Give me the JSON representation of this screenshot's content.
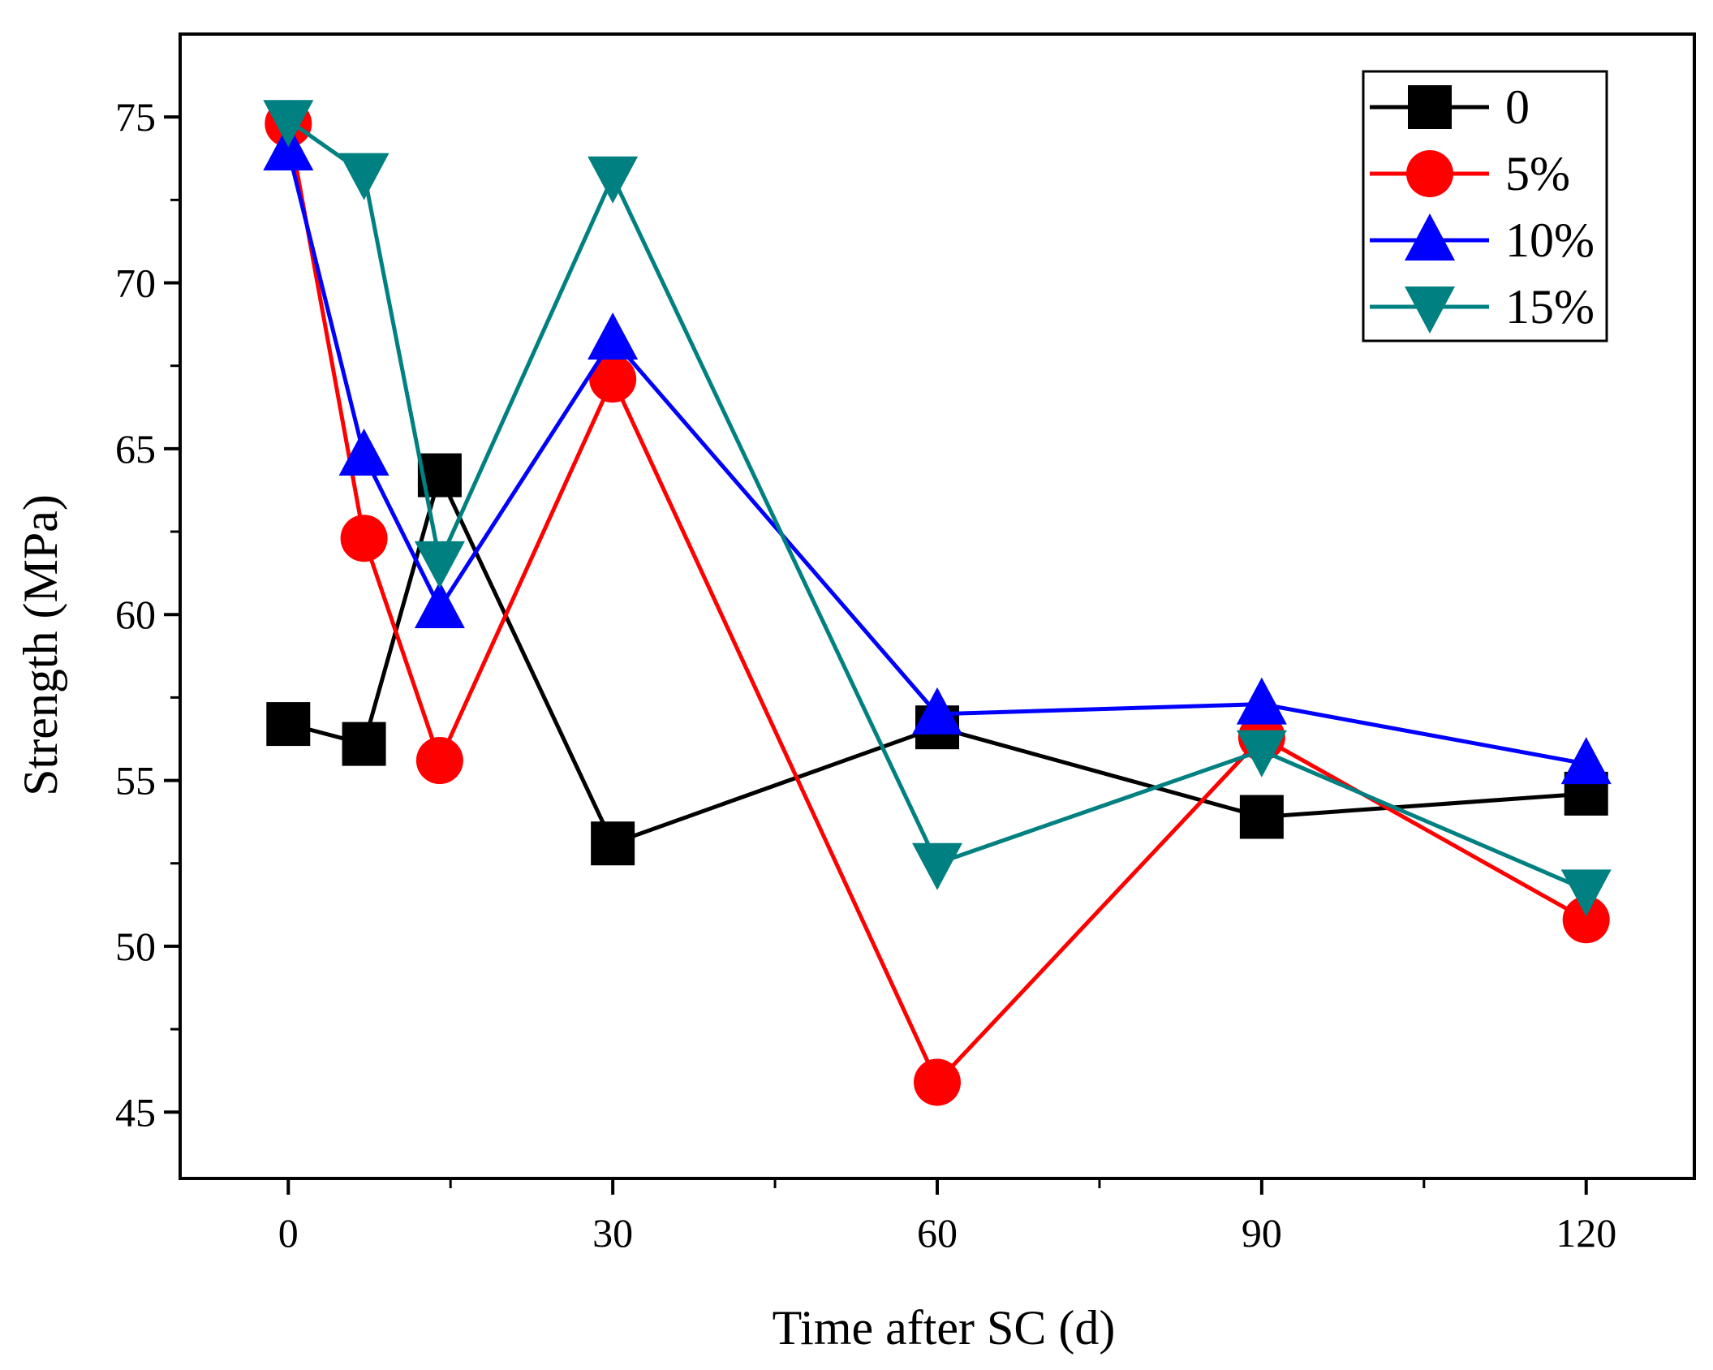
{
  "chart_data": {
    "type": "line",
    "title": "",
    "xlabel": "Time after SC (d)",
    "ylabel": "Strength (MPa)",
    "xlim": [
      -10,
      130
    ],
    "ylim": [
      43,
      77.5
    ],
    "xticks": [
      0,
      30,
      60,
      90,
      120
    ],
    "yticks": [
      45,
      50,
      55,
      60,
      65,
      70,
      75
    ],
    "grid": false,
    "legend_position": "top-right",
    "x": [
      0,
      7,
      14,
      30,
      60,
      90,
      120
    ],
    "series": [
      {
        "name": "0",
        "color": "#000000",
        "marker": "square",
        "values": [
          56.7,
          56.1,
          64.2,
          53.1,
          56.6,
          53.9,
          54.6
        ]
      },
      {
        "name": "5%",
        "color": "#ff0000",
        "marker": "circle",
        "values": [
          74.8,
          62.3,
          55.6,
          67.1,
          45.9,
          56.3,
          50.8
        ]
      },
      {
        "name": "10%",
        "color": "#0000ff",
        "marker": "triangle-up",
        "values": [
          74.0,
          64.8,
          60.2,
          68.3,
          57.0,
          57.3,
          55.5
        ]
      },
      {
        "name": "15%",
        "color": "#008080",
        "marker": "triangle-down",
        "values": [
          74.9,
          73.3,
          61.6,
          73.2,
          52.5,
          55.9,
          51.7
        ]
      }
    ]
  }
}
